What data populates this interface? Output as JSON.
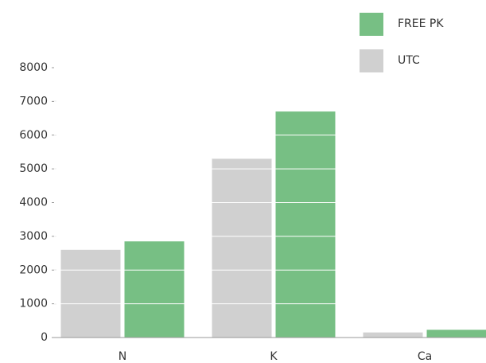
{
  "chart_data": {
    "type": "bar",
    "categories": [
      "N",
      "K",
      "Ca"
    ],
    "series": [
      {
        "name": "UTC",
        "color": "#d0d0d0",
        "values": [
          2600,
          5300,
          150
        ]
      },
      {
        "name": "FREE PK",
        "color": "#77bf84",
        "values": [
          2850,
          6700,
          230
        ]
      }
    ],
    "ylim": [
      0,
      8000
    ],
    "yticks": [
      0,
      1000,
      2000,
      3000,
      4000,
      5000,
      6000,
      7000,
      8000
    ],
    "grid": true,
    "legend": "top-right"
  }
}
